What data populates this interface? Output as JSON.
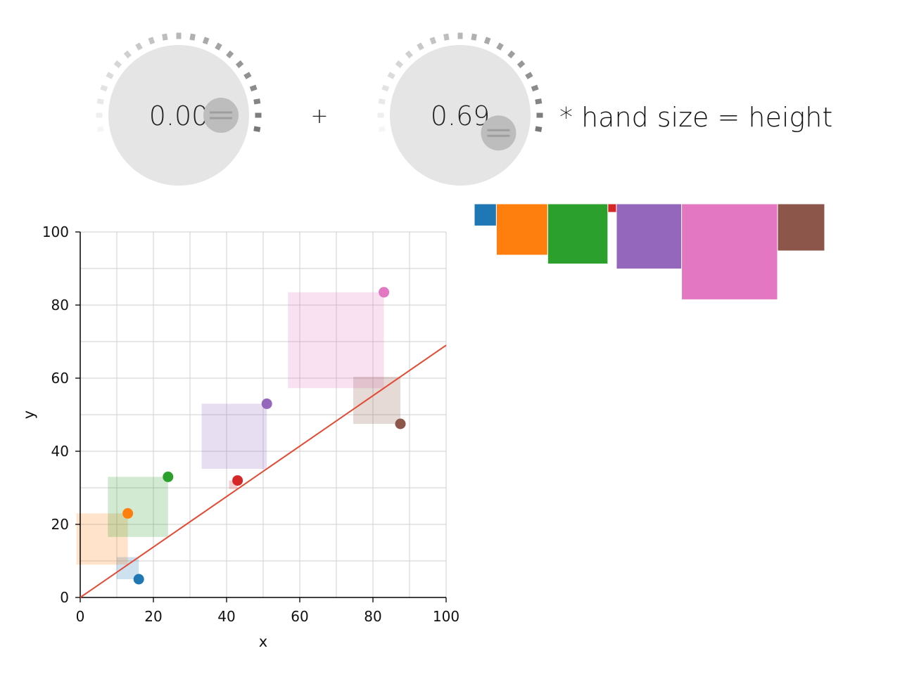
{
  "controls": {
    "knob_a": {
      "value": 0.0,
      "display": "0.00"
    },
    "operator": "+",
    "knob_b": {
      "value": 0.69,
      "display": "0.69"
    },
    "formula_text": "* hand size = height"
  },
  "chart_data": {
    "type": "scatter",
    "xlabel": "x",
    "ylabel": "y",
    "xlim": [
      0,
      100
    ],
    "ylim": [
      0,
      100
    ],
    "xticks": [
      0,
      20,
      40,
      60,
      80,
      100
    ],
    "yticks": [
      0,
      20,
      40,
      60,
      80,
      100
    ],
    "grid": true,
    "fit_line": {
      "slope": 0.69,
      "intercept": 0,
      "color": "#e34a33"
    },
    "points": [
      {
        "x": 16,
        "y": 5,
        "color": "#1f77b4"
      },
      {
        "x": 13,
        "y": 23,
        "color": "#ff7f0e"
      },
      {
        "x": 24,
        "y": 33,
        "color": "#2ca02c"
      },
      {
        "x": 43,
        "y": 32,
        "color": "#d62728"
      },
      {
        "x": 51,
        "y": 53,
        "color": "#9467bd"
      },
      {
        "x": 83,
        "y": 83.5,
        "color": "#e377c2"
      },
      {
        "x": 87.5,
        "y": 47.5,
        "color": "#8c564b"
      }
    ]
  },
  "colors": {
    "blue": "#1f77b4",
    "orange": "#ff7f0e",
    "green": "#2ca02c",
    "red": "#d62728",
    "purple": "#9467bd",
    "pink": "#e377c2",
    "brown": "#8c564b",
    "knob_face": "#e5e5e5",
    "knob_handle": "#bdbdbd",
    "fit_line": "#e34a33"
  }
}
